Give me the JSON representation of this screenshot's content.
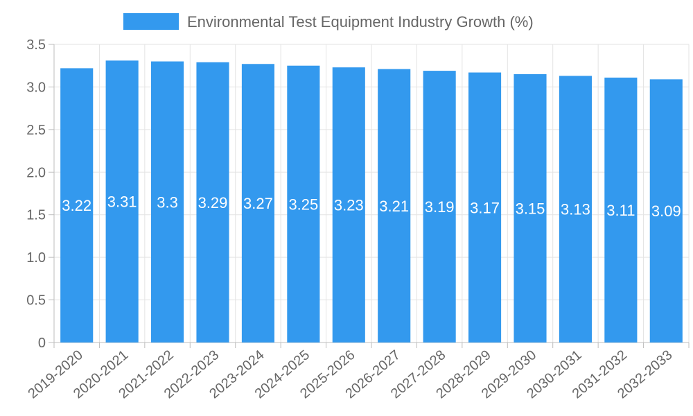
{
  "chart_data": {
    "type": "bar",
    "categories": [
      "2019-2020",
      "2020-2021",
      "2021-2022",
      "2022-2023",
      "2023-2024",
      "2024-2025",
      "2025-2026",
      "2026-2027",
      "2027-2028",
      "2028-2029",
      "2029-2030",
      "2030-2031",
      "2031-2032",
      "2032-2033"
    ],
    "series": [
      {
        "name": "Environmental Test Equipment Industry Growth (%)",
        "values": [
          3.22,
          3.31,
          3.3,
          3.29,
          3.27,
          3.25,
          3.23,
          3.21,
          3.19,
          3.17,
          3.15,
          3.13,
          3.11,
          3.09
        ],
        "color": "#3399ee"
      }
    ],
    "value_labels": [
      "3.22",
      "3.31",
      "3.3",
      "3.29",
      "3.27",
      "3.25",
      "3.23",
      "3.21",
      "3.19",
      "3.17",
      "3.15",
      "3.13",
      "3.11",
      "3.09"
    ],
    "y_ticks": [
      "0",
      "0.5",
      "1.0",
      "1.5",
      "2.0",
      "2.5",
      "3.0",
      "3.5"
    ],
    "ylim": [
      0,
      3.5
    ],
    "grid": true,
    "legend_position": "top-center"
  }
}
